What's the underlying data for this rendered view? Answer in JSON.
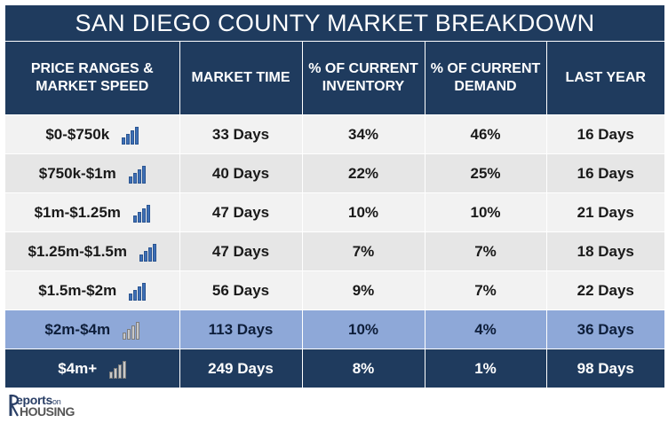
{
  "title": "SAN DIEGO COUNTY MARKET BREAKDOWN",
  "headers": {
    "col1": "PRICE RANGES & MARKET SPEED",
    "col2": "MARKET TIME",
    "col3": "% OF CURRENT INVENTORY",
    "col4": "% OF CURRENT DEMAND",
    "col5": "LAST YEAR"
  },
  "colors": {
    "header_bg": "#1f3b5e",
    "highlight_row": "#8ea8d8",
    "bar_blue": "#3d6fb6",
    "bar_gray": "#c8c8c8"
  },
  "rows": [
    {
      "range": "$0-$750k",
      "speed_icon": "speed-bars-blue-icon",
      "market_time": "33 Days",
      "inventory": "34%",
      "demand": "46%",
      "last_year": "16 Days"
    },
    {
      "range": "$750k-$1m",
      "speed_icon": "speed-bars-blue-icon",
      "market_time": "40 Days",
      "inventory": "22%",
      "demand": "25%",
      "last_year": "16 Days"
    },
    {
      "range": "$1m-$1.25m",
      "speed_icon": "speed-bars-blue-icon",
      "market_time": "47 Days",
      "inventory": "10%",
      "demand": "10%",
      "last_year": "21 Days"
    },
    {
      "range": "$1.25m-$1.5m",
      "speed_icon": "speed-bars-blue-icon",
      "market_time": "47 Days",
      "inventory": "7%",
      "demand": "7%",
      "last_year": "18 Days"
    },
    {
      "range": "$1.5m-$2m",
      "speed_icon": "speed-bars-blue-icon",
      "market_time": "56 Days",
      "inventory": "9%",
      "demand": "7%",
      "last_year": "22 Days"
    },
    {
      "range": "$2m-$4m",
      "speed_icon": "speed-bars-gray-icon",
      "market_time": "113 Days",
      "inventory": "10%",
      "demand": "4%",
      "last_year": "36 Days"
    },
    {
      "range": "$4m+",
      "speed_icon": "speed-bars-gray-icon",
      "market_time": "249 Days",
      "inventory": "8%",
      "demand": "1%",
      "last_year": "98 Days"
    }
  ],
  "logo": {
    "line1": "eports",
    "line1_small": "on",
    "line2": "HOUSING"
  }
}
